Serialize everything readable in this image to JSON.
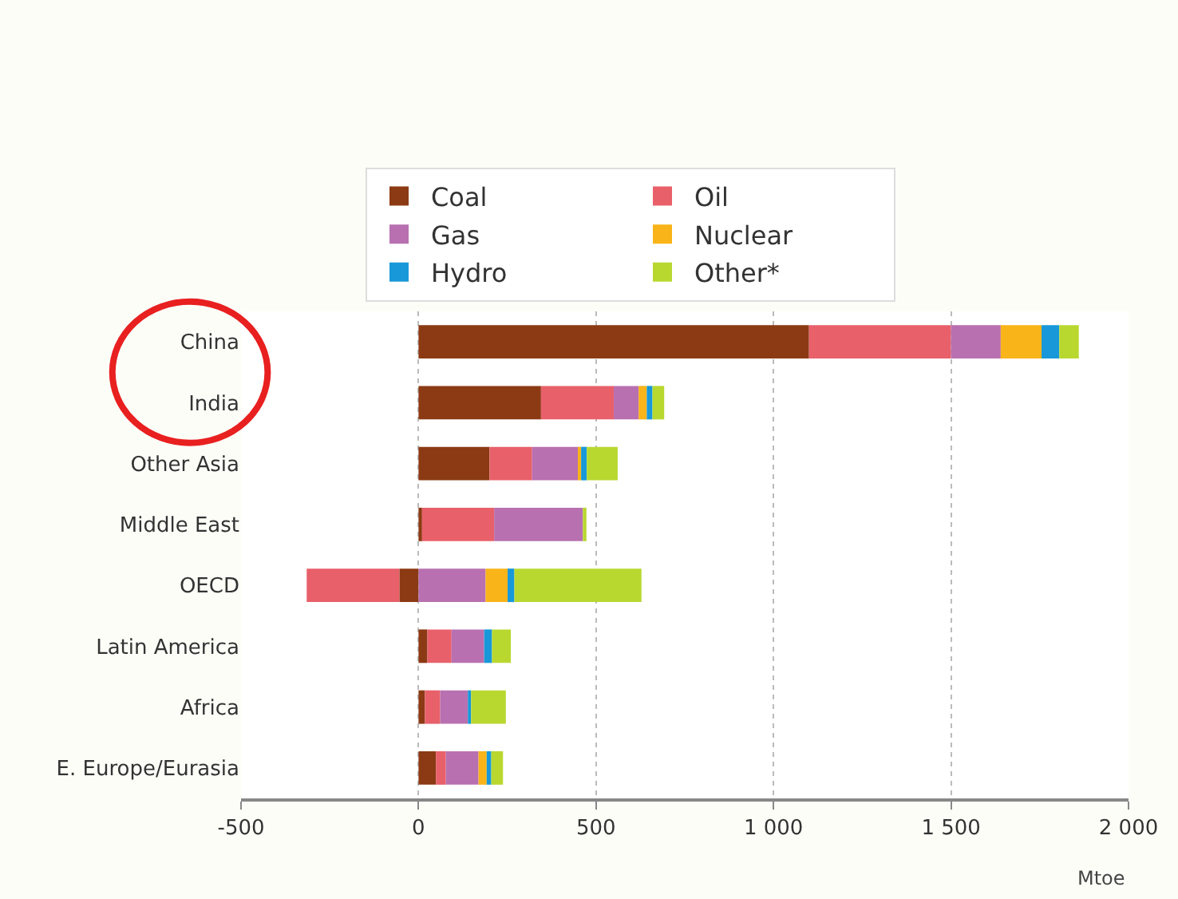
{
  "chart_data": {
    "type": "bar",
    "orientation": "horizontal",
    "stacked": true,
    "xlabel": "Mtoe",
    "categories": [
      "China",
      "India",
      "Other Asia",
      "Middle East",
      "OECD",
      "Latin America",
      "Africa",
      "E. Europe/Eurasia"
    ],
    "series": [
      {
        "name": "Coal",
        "color": "#8b3a14",
        "values": [
          1100,
          345,
          200,
          10,
          -54,
          25,
          18,
          49
        ]
      },
      {
        "name": "Oil",
        "color": "#e8606a",
        "values": [
          400,
          205,
          120,
          203,
          -261,
          68,
          43,
          28
        ]
      },
      {
        "name": "Gas",
        "color": "#b870b0",
        "values": [
          140,
          70,
          130,
          250,
          189,
          92,
          78,
          92
        ]
      },
      {
        "name": "Nuclear",
        "color": "#f8b418",
        "values": [
          115,
          23,
          8,
          0,
          62,
          null,
          0,
          23
        ]
      },
      {
        "name": "Hydro",
        "color": "#1898d8",
        "values": [
          50,
          16,
          16,
          0,
          19,
          22,
          9,
          13
        ]
      },
      {
        "name": "Other*",
        "color": "#b8d830",
        "values": [
          55,
          33,
          87,
          10,
          358,
          53,
          98,
          33
        ]
      }
    ],
    "xlim": [
      -500,
      2000
    ],
    "xticks": [
      -500,
      0,
      500,
      {
        "value": 1000,
        "label": "1 000"
      },
      {
        "value": 1500,
        "label": "1 500"
      },
      {
        "value": 2000,
        "label": "2 000"
      }
    ],
    "grid": "x",
    "legend": "top"
  }
}
